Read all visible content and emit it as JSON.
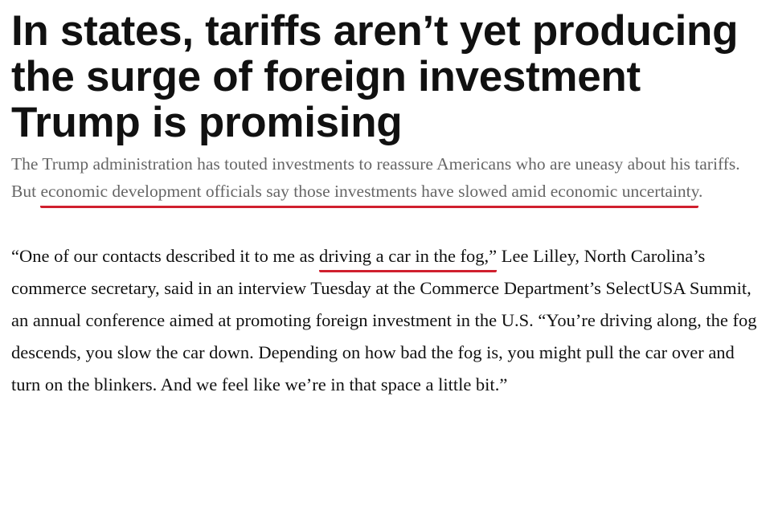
{
  "article": {
    "headline": "In states, tariffs aren’t yet producing the surge of foreign investment Trump is promising",
    "dek": {
      "before": "The Trump administration has touted investments to reassure Americans who are uneasy about his tariffs. But ",
      "highlighted": "economic development officials say those investments have slowed amid economic uncertainty",
      "after": "."
    },
    "paragraph": {
      "before": "“One of our contacts described it to me as ",
      "highlighted": "driving a car in the fog,”",
      "after": " Lee Lilley, North Carolina’s commerce secretary, said in an interview Tuesday at the Commerce Department’s SelectUSA Summit, an annual conference aimed at promoting foreign investment in the U.S. “You’re driving along, the fog descends, you slow the car down. Depending on how bad the fog is, you might pull the car over and turn on the blinkers. And we feel like we’re in that space a little bit.”"
    }
  },
  "colors": {
    "highlight_underline": "#d0202e",
    "dek_text": "#666666"
  }
}
